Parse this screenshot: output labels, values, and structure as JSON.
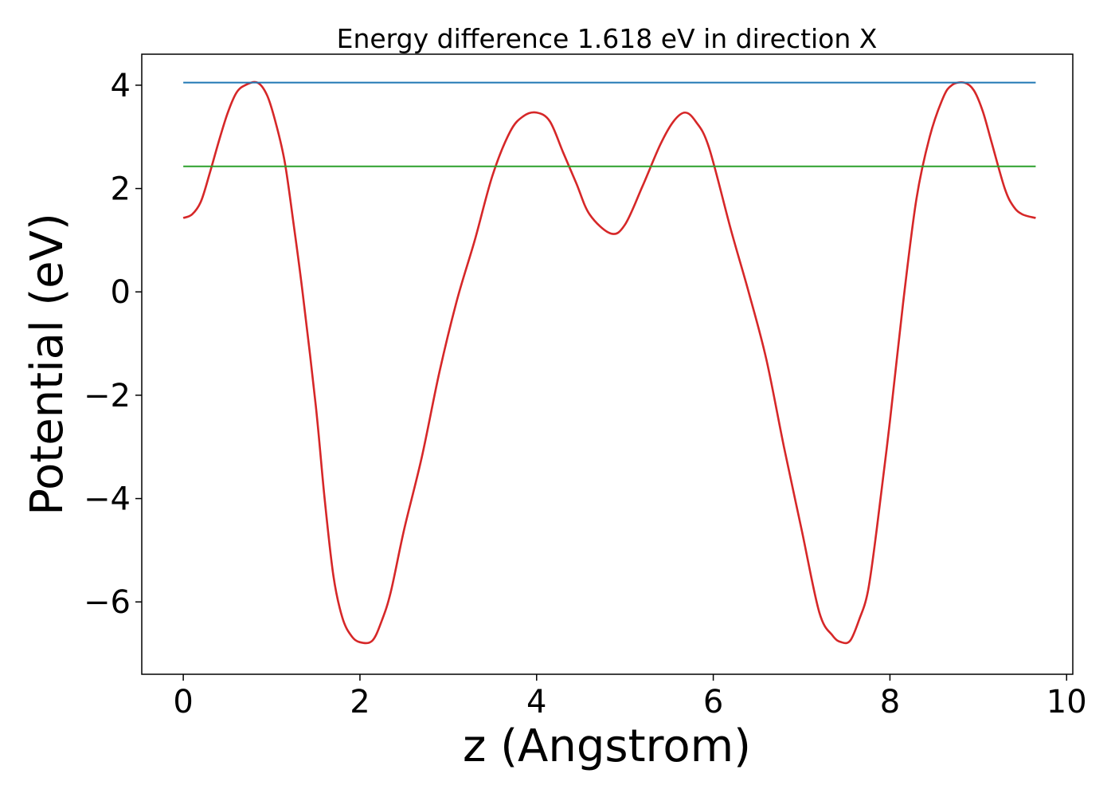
{
  "chart_data": {
    "type": "line",
    "title": "Energy difference 1.618 eV in direction X",
    "xlabel": "z (Angstrom)",
    "ylabel": "Potential (eV)",
    "xlim": [
      -0.47,
      10.07
    ],
    "ylim": [
      -7.4,
      4.6
    ],
    "xticks": [
      0,
      2,
      4,
      6,
      8,
      10
    ],
    "xtick_labels": [
      "0",
      "2",
      "4",
      "6",
      "8",
      "10"
    ],
    "yticks": [
      4,
      2,
      0,
      -2,
      -4,
      -6
    ],
    "ytick_labels": [
      "4",
      "2",
      "0",
      "−2",
      "−4",
      "−6"
    ],
    "grid": false,
    "series": [
      {
        "color": "#d62728",
        "style": "curve",
        "x": [
          0.0,
          0.1,
          0.2,
          0.3,
          0.4,
          0.5,
          0.6,
          0.7,
          0.84,
          0.95,
          1.05,
          1.15,
          1.25,
          1.35,
          1.5,
          1.6,
          1.7,
          1.8,
          1.9,
          2.0,
          2.14,
          2.25,
          2.35,
          2.5,
          2.7,
          2.9,
          3.1,
          3.3,
          3.5,
          3.7,
          3.85,
          4.0,
          4.15,
          4.3,
          4.45,
          4.6,
          4.84,
          5.0,
          5.2,
          5.4,
          5.55,
          5.68,
          5.8,
          5.95,
          6.2,
          6.4,
          6.6,
          6.8,
          7.0,
          7.2,
          7.35,
          7.45,
          7.55,
          7.65,
          7.75,
          7.85,
          8.0,
          8.15,
          8.3,
          8.45,
          8.6,
          8.7,
          8.84,
          8.95,
          9.05,
          9.15,
          9.3,
          9.4,
          9.5,
          9.65
        ],
        "y": [
          1.43,
          1.5,
          1.75,
          2.3,
          2.9,
          3.45,
          3.85,
          4.0,
          4.05,
          3.8,
          3.25,
          2.5,
          1.3,
          0.0,
          -2.2,
          -4.0,
          -5.5,
          -6.3,
          -6.65,
          -6.78,
          -6.75,
          -6.35,
          -5.8,
          -4.6,
          -3.2,
          -1.55,
          -0.15,
          1.0,
          2.25,
          3.1,
          3.4,
          3.47,
          3.3,
          2.7,
          2.1,
          1.5,
          1.13,
          1.3,
          2.05,
          2.85,
          3.3,
          3.47,
          3.3,
          2.8,
          1.2,
          0.0,
          -1.3,
          -3.0,
          -4.6,
          -6.2,
          -6.65,
          -6.78,
          -6.75,
          -6.35,
          -5.8,
          -4.6,
          -2.5,
          -0.2,
          1.8,
          3.0,
          3.75,
          4.0,
          4.05,
          3.9,
          3.5,
          2.9,
          2.0,
          1.65,
          1.5,
          1.43
        ]
      },
      {
        "color": "#1f77b4",
        "style": "straight",
        "x": [
          0.0,
          9.65
        ],
        "y": [
          4.05,
          4.05
        ]
      },
      {
        "color": "#2ca02c",
        "style": "straight",
        "x": [
          0.0,
          9.65
        ],
        "y": [
          2.43,
          2.43
        ]
      }
    ]
  }
}
